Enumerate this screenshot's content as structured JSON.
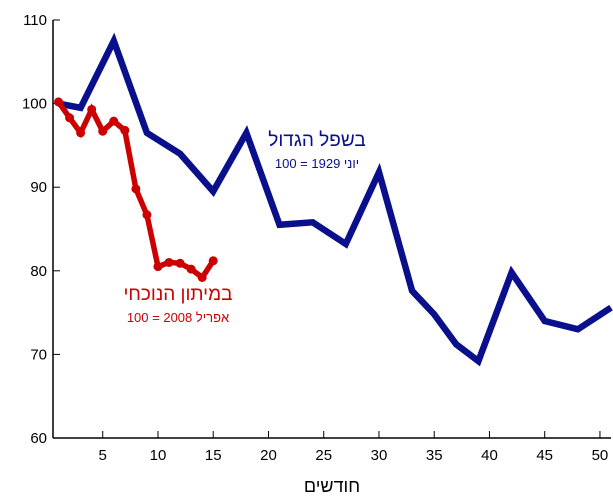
{
  "chart_data": {
    "type": "line",
    "xlabel": "חודשים",
    "ylabel": "",
    "xlim": [
      0.5,
      51
    ],
    "ylim": [
      60,
      110
    ],
    "xticks": [
      5,
      10,
      15,
      20,
      25,
      30,
      35,
      40,
      45,
      50
    ],
    "yticks": [
      60,
      70,
      80,
      90,
      100,
      110
    ],
    "series": [
      {
        "name": "בשפל הגדול",
        "color": "#0a0f8c",
        "markers": false,
        "x": [
          1,
          3,
          6,
          9,
          12,
          15,
          18,
          21,
          24,
          27,
          30,
          33,
          35,
          37,
          39,
          42,
          45,
          48,
          51
        ],
        "y": [
          100,
          99.5,
          107.5,
          96.5,
          94,
          89.5,
          96.5,
          85.5,
          85.8,
          83.2,
          91.8,
          77.6,
          74.8,
          71.2,
          69.2,
          79.8,
          74,
          73,
          75.6
        ]
      },
      {
        "name": "במיתון הנוכחי",
        "color": "#cc0000",
        "markers": true,
        "x": [
          1,
          2,
          3,
          4,
          5,
          6,
          7,
          8,
          9,
          10,
          11,
          12,
          13,
          14,
          15
        ],
        "y": [
          100.2,
          98.3,
          96.5,
          99.3,
          96.7,
          97.9,
          96.8,
          89.8,
          86.7,
          80.5,
          81,
          80.9,
          80.2,
          79.2,
          81.2
        ]
      }
    ],
    "annotations": [
      {
        "series": 0,
        "title": "בשפל הגדול",
        "subtitle": "יוני 1929 = 100"
      },
      {
        "series": 1,
        "title": "במיתון הנוכחי",
        "subtitle": "אפריל 2008 = 100"
      }
    ]
  }
}
